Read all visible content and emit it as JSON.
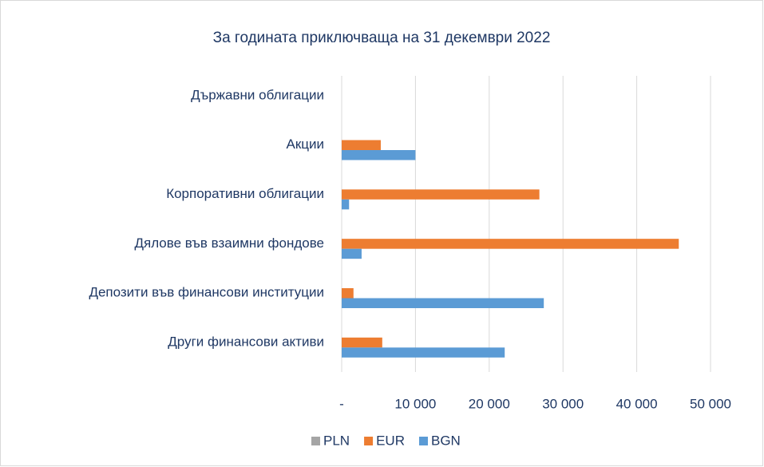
{
  "chart_data": {
    "type": "hbar",
    "title": "За годината приключваща на 31 декември 2022",
    "categories": [
      "Държавни облигации",
      "Акции",
      "Корпоративни облигации",
      "Дялове във взаимни фондове",
      "Депозити във финансови институции",
      "Други финансови активи"
    ],
    "series": [
      {
        "name": "PLN",
        "color": "#a5a5a5",
        "values": [
          0,
          0,
          0,
          0,
          0,
          0
        ]
      },
      {
        "name": "EUR",
        "color": "#ed7d31",
        "values": [
          0,
          5300,
          26800,
          45700,
          1600,
          5500
        ]
      },
      {
        "name": "BGN",
        "color": "#5b9bd5",
        "values": [
          0,
          10000,
          1000,
          2700,
          27400,
          22100
        ]
      }
    ],
    "xlim": [
      0,
      50000
    ],
    "xticks": [
      {
        "value": 0,
        "label": "-"
      },
      {
        "value": 10000,
        "label": "10 000"
      },
      {
        "value": 20000,
        "label": "20 000"
      },
      {
        "value": 30000,
        "label": "30 000"
      },
      {
        "value": 40000,
        "label": "40 000"
      },
      {
        "value": 50000,
        "label": "50 000"
      }
    ],
    "grid": true,
    "legend": "bottom"
  }
}
